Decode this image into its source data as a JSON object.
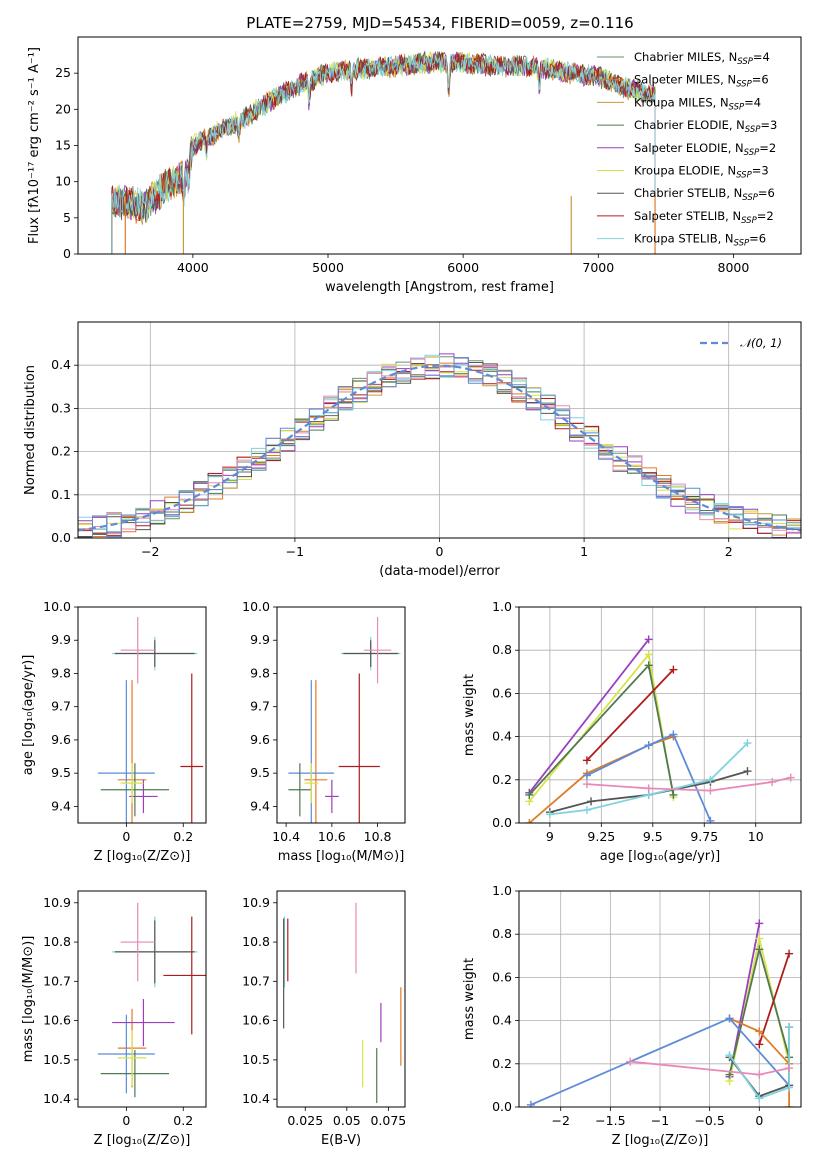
{
  "chart_data": [
    {
      "id": "spectrum",
      "type": "line",
      "title": "PLATE=2759, MJD=54534, FIBERID=0059, z=0.116",
      "xlabel": "wavelength [Angstrom, rest frame]",
      "ylabel": "Flux [fλ10⁻¹⁷ erg cm⁻² s⁻¹ A⁻¹]",
      "xlim": [
        3150,
        8500
      ],
      "ylim": [
        0,
        30
      ],
      "xticks": [
        4000,
        5000,
        6000,
        7000,
        8000
      ],
      "yticks": [
        0,
        5,
        10,
        15,
        20,
        25
      ],
      "grid": false,
      "legend_position": "top-right",
      "series": [
        {
          "name": "Chabrier MILES, N_SSP=4",
          "color": "#6e8f72"
        },
        {
          "name": "Salpeter MILES, N_SSP=6",
          "color": "#e07b28"
        },
        {
          "name": "Kroupa MILES, N_SSP=4",
          "color": "#c89a3a"
        },
        {
          "name": "Chabrier ELODIE, N_SSP=3",
          "color": "#4f7a53"
        },
        {
          "name": "Salpeter ELODIE, N_SSP=2",
          "color": "#9b3fc0"
        },
        {
          "name": "Kroupa ELODIE, N_SSP=3",
          "color": "#d9e24a"
        },
        {
          "name": "Chabrier STELIB, N_SSP=6",
          "color": "#555555"
        },
        {
          "name": "Salpeter STELIB, N_SSP=2",
          "color": "#b01c1c"
        },
        {
          "name": "Kroupa STELIB, N_SSP=6",
          "color": "#7fd3de"
        }
      ],
      "continuum": {
        "x": [
          3400,
          3500,
          3650,
          3800,
          3950,
          4000,
          4200,
          4400,
          4600,
          4800,
          5000,
          5200,
          5500,
          5800,
          6000,
          6200,
          6500,
          6800,
          7000,
          7200,
          7420
        ],
        "y": [
          7.5,
          7,
          6.5,
          9.5,
          11,
          15,
          17,
          19,
          21.5,
          23.5,
          25,
          25.5,
          26,
          26.5,
          26.5,
          26,
          26,
          25,
          24.5,
          23,
          22
        ]
      }
    },
    {
      "id": "residuals",
      "type": "step",
      "xlabel": "(data-model)/error",
      "ylabel": "Normed distribution",
      "xlim": [
        -2.5,
        2.5
      ],
      "ylim": [
        0,
        0.5
      ],
      "xticks": [
        -2,
        -1,
        0,
        1,
        2
      ],
      "yticks": [
        0.0,
        0.1,
        0.2,
        0.3,
        0.4
      ],
      "grid": true,
      "legend_position": "top-right",
      "reference": {
        "name": "𝒩(0, 1)",
        "color": "#5b8bd9",
        "style": "dashed"
      },
      "bin_width": 0.1
    },
    {
      "id": "age-vs-Z",
      "type": "errorbar",
      "xlabel": "Z [log₁₀(Z/Z⊙)]",
      "ylabel": "age  [log₁₀(age/yr)]",
      "xlim": [
        -0.17,
        0.28
      ],
      "ylim": [
        9.35,
        10.0
      ],
      "xticks": [
        0.0,
        0.2
      ],
      "yticks": [
        9.4,
        9.5,
        9.6,
        9.7,
        9.8,
        9.9,
        10.0
      ],
      "points": [
        {
          "x": 0.1,
          "y": 9.86,
          "xerr": 0.15,
          "yerr": 0.05,
          "color": "#7fd3de"
        },
        {
          "x": 0.1,
          "y": 9.86,
          "xerr": 0.14,
          "yerr": 0.04,
          "color": "#555555"
        },
        {
          "x": 0.04,
          "y": 9.87,
          "xerr": 0.06,
          "yerr": 0.1,
          "color": "#e889b7"
        },
        {
          "x": 0.23,
          "y": 9.52,
          "xerr": 0.04,
          "yerr": 0.28,
          "color": "#b01c1c"
        },
        {
          "x": 0.02,
          "y": 9.48,
          "xerr": 0.05,
          "yerr": 0.3,
          "color": "#e07b28"
        },
        {
          "x": 0.0,
          "y": 9.5,
          "xerr": 0.1,
          "yerr": 0.28,
          "color": "#5b8bd9"
        },
        {
          "x": 0.06,
          "y": 9.43,
          "xerr": 0.05,
          "yerr": 0.05,
          "color": "#9b3fc0"
        },
        {
          "x": 0.03,
          "y": 9.45,
          "xerr": 0.12,
          "yerr": 0.08,
          "color": "#4f7a53"
        },
        {
          "x": 0.02,
          "y": 9.47,
          "xerr": 0.04,
          "yerr": 0.06,
          "color": "#d9e24a"
        }
      ]
    },
    {
      "id": "age-vs-mass",
      "type": "errorbar",
      "xlabel": "mass [log₁₀(M/M⊙)]",
      "ylabel": "",
      "xlim": [
        10.36,
        10.92
      ],
      "ylim": [
        9.35,
        10.0
      ],
      "xticks": [
        10.4,
        10.6,
        10.8
      ],
      "yticks": [
        9.4,
        9.5,
        9.6,
        9.7,
        9.8,
        9.9,
        10.0
      ],
      "points": [
        {
          "x": 10.77,
          "y": 9.86,
          "xerr": 0.13,
          "yerr": 0.05,
          "color": "#7fd3de"
        },
        {
          "x": 10.77,
          "y": 9.86,
          "xerr": 0.12,
          "yerr": 0.04,
          "color": "#555555"
        },
        {
          "x": 10.8,
          "y": 9.87,
          "xerr": 0.06,
          "yerr": 0.1,
          "color": "#e889b7"
        },
        {
          "x": 10.72,
          "y": 9.52,
          "xerr": 0.09,
          "yerr": 0.28,
          "color": "#b01c1c"
        },
        {
          "x": 10.53,
          "y": 9.48,
          "xerr": 0.05,
          "yerr": 0.3,
          "color": "#e07b28"
        },
        {
          "x": 10.51,
          "y": 9.5,
          "xerr": 0.1,
          "yerr": 0.28,
          "color": "#5b8bd9"
        },
        {
          "x": 10.6,
          "y": 9.43,
          "xerr": 0.03,
          "yerr": 0.05,
          "color": "#9b3fc0"
        },
        {
          "x": 10.46,
          "y": 9.45,
          "xerr": 0.05,
          "yerr": 0.08,
          "color": "#4f7a53"
        },
        {
          "x": 10.51,
          "y": 9.47,
          "xerr": 0.03,
          "yerr": 0.06,
          "color": "#d9e24a"
        }
      ]
    },
    {
      "id": "weight-vs-age",
      "type": "line",
      "xlabel": "age  [log₁₀(age/yr)]",
      "ylabel": "mass weight",
      "xlim": [
        8.85,
        10.22
      ],
      "ylim": [
        0,
        1.0
      ],
      "xticks": [
        9.0,
        9.25,
        9.5,
        9.75,
        10.0
      ],
      "yticks": [
        0.0,
        0.2,
        0.4,
        0.6,
        0.8,
        1.0
      ],
      "grid": true,
      "series": [
        {
          "color": "#9b3fc0",
          "x": [
            8.9,
            9.48
          ],
          "y": [
            0.14,
            0.85
          ]
        },
        {
          "color": "#d9e24a",
          "x": [
            8.9,
            9.48,
            9.6
          ],
          "y": [
            0.1,
            0.78,
            0.12
          ]
        },
        {
          "color": "#4f7a53",
          "x": [
            8.9,
            9.48,
            9.6
          ],
          "y": [
            0.13,
            0.73,
            0.13
          ]
        },
        {
          "color": "#b01c1c",
          "x": [
            9.18,
            9.6
          ],
          "y": [
            0.29,
            0.71
          ]
        },
        {
          "color": "#e07b28",
          "x": [
            8.9,
            9.18,
            9.48,
            9.6
          ],
          "y": [
            0.0,
            0.23,
            0.36,
            0.4
          ]
        },
        {
          "color": "#5b8bd9",
          "x": [
            9.18,
            9.48,
            9.6,
            9.78
          ],
          "y": [
            0.22,
            0.36,
            0.41,
            0.01
          ]
        },
        {
          "color": "#555555",
          "x": [
            9.0,
            9.2,
            9.48,
            9.78,
            9.96
          ],
          "y": [
            0.05,
            0.1,
            0.13,
            0.19,
            0.24
          ]
        },
        {
          "color": "#7fd3de",
          "x": [
            9.0,
            9.18,
            9.48,
            9.78,
            9.96
          ],
          "y": [
            0.04,
            0.06,
            0.13,
            0.2,
            0.37
          ]
        },
        {
          "color": "#e889b7",
          "x": [
            9.18,
            9.48,
            9.78,
            10.08,
            10.17
          ],
          "y": [
            0.18,
            0.16,
            0.15,
            0.19,
            0.21
          ]
        }
      ]
    },
    {
      "id": "mass-vs-Z",
      "type": "errorbar",
      "xlabel": "Z [log₁₀(Z/Z⊙)]",
      "ylabel": "mass [log₁₀(M/M⊙)]",
      "xlim": [
        -0.17,
        0.28
      ],
      "ylim": [
        10.38,
        10.93
      ],
      "xticks": [
        0.0,
        0.2
      ],
      "yticks": [
        10.4,
        10.5,
        10.6,
        10.7,
        10.8,
        10.9
      ],
      "points": [
        {
          "x": 0.1,
          "y": 10.775,
          "xerr": 0.15,
          "yerr": 0.09,
          "color": "#7fd3de"
        },
        {
          "x": 0.1,
          "y": 10.775,
          "xerr": 0.14,
          "yerr": 0.08,
          "color": "#555555"
        },
        {
          "x": 0.04,
          "y": 10.8,
          "xerr": 0.06,
          "yerr": 0.1,
          "color": "#e889b7"
        },
        {
          "x": 0.23,
          "y": 10.715,
          "xerr": 0.1,
          "yerr": 0.15,
          "color": "#b01c1c"
        },
        {
          "x": 0.02,
          "y": 10.53,
          "xerr": 0.05,
          "yerr": 0.1,
          "color": "#e07b28"
        },
        {
          "x": 0.0,
          "y": 10.515,
          "xerr": 0.1,
          "yerr": 0.1,
          "color": "#5b8bd9"
        },
        {
          "x": 0.06,
          "y": 10.595,
          "xerr": 0.11,
          "yerr": 0.06,
          "color": "#9b3fc0"
        },
        {
          "x": 0.03,
          "y": 10.465,
          "xerr": 0.12,
          "yerr": 0.06,
          "color": "#4f7a53"
        },
        {
          "x": 0.02,
          "y": 10.505,
          "xerr": 0.05,
          "yerr": 0.07,
          "color": "#d9e24a"
        }
      ]
    },
    {
      "id": "mass-vs-EBV",
      "type": "errorbar",
      "xlabel": "E(B-V)",
      "ylabel": "",
      "xlim": [
        0.008,
        0.085
      ],
      "ylim": [
        10.38,
        10.93
      ],
      "xticks": [
        0.025,
        0.05,
        0.075
      ],
      "yticks": [
        10.4,
        10.5,
        10.6,
        10.7,
        10.8,
        10.9
      ],
      "points": [
        {
          "x": 0.0125,
          "y": 10.775,
          "yerr": 0.09,
          "color": "#7fd3de"
        },
        {
          "x": 0.012,
          "y": 10.72,
          "yerr": 0.14,
          "color": "#555555"
        },
        {
          "x": 0.0145,
          "y": 10.78,
          "yerr": 0.08,
          "color": "#b01c1c"
        },
        {
          "x": 0.0555,
          "y": 10.81,
          "yerr": 0.09,
          "color": "#e889b7"
        },
        {
          "x": 0.0595,
          "y": 10.49,
          "yerr": 0.06,
          "color": "#d9e24a"
        },
        {
          "x": 0.068,
          "y": 10.46,
          "yerr": 0.07,
          "color": "#4f7a53"
        },
        {
          "x": 0.0705,
          "y": 10.595,
          "yerr": 0.05,
          "color": "#9b3fc0"
        },
        {
          "x": 0.0825,
          "y": 10.585,
          "yerr": 0.1,
          "color": "#e07b28"
        }
      ]
    },
    {
      "id": "weight-vs-Z",
      "type": "line",
      "xlabel": "Z [log₁₀(Z/Z⊙)]",
      "ylabel": "mass weight",
      "xlim": [
        -2.42,
        0.42
      ],
      "ylim": [
        0,
        1.0
      ],
      "xticks": [
        -2.0,
        -1.5,
        -1.0,
        -0.5,
        0.0
      ],
      "yticks": [
        0.0,
        0.2,
        0.4,
        0.6,
        0.8,
        1.0
      ],
      "grid": true,
      "series": [
        {
          "color": "#9b3fc0",
          "x": [
            -0.3,
            0.0
          ],
          "y": [
            0.14,
            0.85
          ]
        },
        {
          "color": "#d9e24a",
          "x": [
            -0.3,
            0.0,
            0.3
          ],
          "y": [
            0.12,
            0.78,
            0.2
          ]
        },
        {
          "color": "#4f7a53",
          "x": [
            -0.3,
            0.0,
            0.3
          ],
          "y": [
            0.15,
            0.73,
            0.23
          ]
        },
        {
          "color": "#b01c1c",
          "x": [
            0.0,
            0.3
          ],
          "y": [
            0.29,
            0.71
          ]
        },
        {
          "color": "#e07b28",
          "x": [
            -0.3,
            0.0,
            0.3,
            0.3
          ],
          "y": [
            0.41,
            0.35,
            0.2,
            0.0
          ]
        },
        {
          "color": "#5b8bd9",
          "x": [
            -2.3,
            -0.3,
            0.3
          ],
          "y": [
            0.01,
            0.41,
            0.1
          ]
        },
        {
          "color": "#555555",
          "x": [
            -0.3,
            0.0,
            0.3,
            0.3
          ],
          "y": [
            0.23,
            0.05,
            0.1,
            0.37
          ]
        },
        {
          "color": "#7fd3de",
          "x": [
            -0.3,
            0.0,
            0.3,
            0.3
          ],
          "y": [
            0.24,
            0.04,
            0.09,
            0.37
          ]
        },
        {
          "color": "#e889b7",
          "x": [
            -1.3,
            0.0,
            0.3
          ],
          "y": [
            0.21,
            0.15,
            0.18
          ]
        }
      ]
    }
  ]
}
